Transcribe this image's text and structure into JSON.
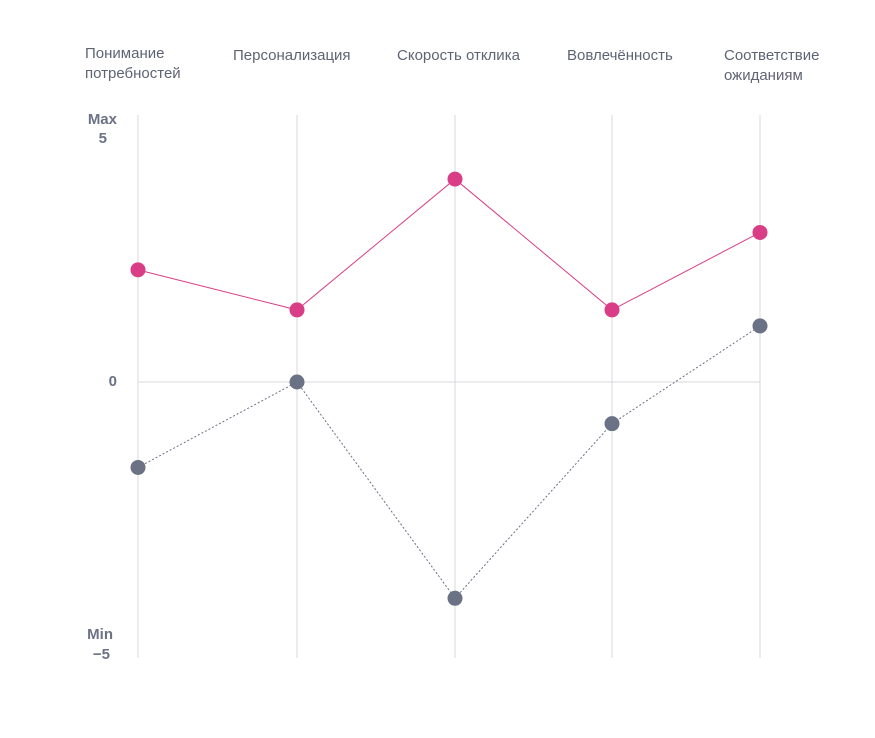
{
  "chart_data": {
    "type": "line",
    "categories": [
      "Понимание потребностей",
      "Персонализация",
      "Скорость отклика",
      "Вовлечённость",
      "Соответствие ожиданиям"
    ],
    "ylim": [
      -5,
      5
    ],
    "y_labels": {
      "max_label": "Max",
      "max_value": "5",
      "zero": "0",
      "min_label": "Min",
      "min_value": "−5"
    },
    "grid": true,
    "series": [
      {
        "values": [
          2.1,
          1.35,
          3.8,
          1.35,
          2.8
        ],
        "color": "#D93D86",
        "style": "solid"
      },
      {
        "values": [
          -1.6,
          0,
          -4.05,
          -0.78,
          1.05
        ],
        "color": "#6B7285",
        "style": "dotted"
      }
    ]
  }
}
